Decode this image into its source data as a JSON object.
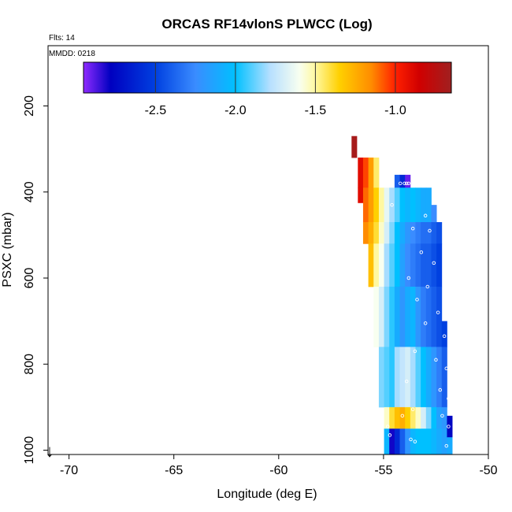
{
  "chart_data": {
    "type": "heatmap",
    "title": "ORCAS RF14vlonS PLWCC (Log)",
    "annotations": {
      "flights": "Flts: 14",
      "date": "MMDD: 0218"
    },
    "xlabel": "Longitude (deg E)",
    "ylabel": "PSXC (mbar)",
    "xlim": [
      -71,
      -50
    ],
    "ylim": [
      1010,
      60
    ],
    "x_ticks": [
      -70,
      -65,
      -60,
      -55,
      -50
    ],
    "x_tick_labels": [
      "-70",
      "-65",
      "-60",
      "-55",
      "-50"
    ],
    "y_ticks": [
      200,
      400,
      600,
      800,
      1000
    ],
    "y_tick_labels": [
      "200",
      "400",
      "600",
      "800",
      "1000"
    ],
    "colorbar": {
      "range": [
        -2.95,
        -0.65
      ],
      "ticks": [
        -2.5,
        -2.0,
        -1.5,
        -1.0
      ],
      "tick_labels": [
        "-2.5",
        "-2.0",
        "-1.5",
        "-1.0"
      ],
      "stops": [
        {
          "v": -2.95,
          "c": "#8f2bff"
        },
        {
          "v": -2.78,
          "c": "#0000c0"
        },
        {
          "v": -2.5,
          "c": "#0040e0"
        },
        {
          "v": -2.25,
          "c": "#3a8cff"
        },
        {
          "v": -2.0,
          "c": "#00c0ff"
        },
        {
          "v": -1.78,
          "c": "#b8e0ff"
        },
        {
          "v": -1.6,
          "c": "#f8fff0"
        },
        {
          "v": -1.5,
          "c": "#fff8a0"
        },
        {
          "v": -1.35,
          "c": "#ffd000"
        },
        {
          "v": -1.15,
          "c": "#ff8c00"
        },
        {
          "v": -1.0,
          "c": "#ff2000"
        },
        {
          "v": -0.85,
          "c": "#d00000"
        },
        {
          "v": -0.65,
          "c": "#a02020"
        }
      ]
    },
    "indicator": "↓",
    "columns": [
      {
        "lon": -56.4,
        "cells": [
          {
            "p0": 270,
            "p1": 320,
            "v": -0.68
          }
        ]
      },
      {
        "lon": -56.1,
        "cells": [
          {
            "p0": 320,
            "p1": 390,
            "v": -0.9
          },
          {
            "p0": 390,
            "p1": 425,
            "v": -0.9
          }
        ]
      },
      {
        "lon": -55.85,
        "cells": [
          {
            "p0": 320,
            "p1": 390,
            "v": -1.05
          },
          {
            "p0": 390,
            "p1": 470,
            "v": -1.1
          },
          {
            "p0": 470,
            "p1": 520,
            "v": -1.15
          }
        ]
      },
      {
        "lon": -55.6,
        "cells": [
          {
            "p0": 320,
            "p1": 390,
            "v": -1.2
          },
          {
            "p0": 390,
            "p1": 470,
            "v": -1.2
          },
          {
            "p0": 470,
            "p1": 520,
            "v": -1.25
          },
          {
            "p0": 520,
            "p1": 620,
            "v": -1.3
          }
        ]
      },
      {
        "lon": -55.35,
        "cells": [
          {
            "p0": 320,
            "p1": 390,
            "v": -1.45
          },
          {
            "p0": 390,
            "p1": 470,
            "v": -1.35
          },
          {
            "p0": 470,
            "p1": 520,
            "v": -1.4
          },
          {
            "p0": 520,
            "p1": 620,
            "v": -1.5
          },
          {
            "p0": 620,
            "p1": 760,
            "v": -1.6
          }
        ]
      },
      {
        "lon": -55.1,
        "cells": [
          {
            "p0": 390,
            "p1": 470,
            "v": -1.5
          },
          {
            "p0": 470,
            "p1": 520,
            "v": -1.55
          },
          {
            "p0": 520,
            "p1": 620,
            "v": -1.6
          },
          {
            "p0": 620,
            "p1": 760,
            "v": -1.7
          },
          {
            "p0": 760,
            "p1": 900,
            "v": -1.85
          }
        ]
      },
      {
        "lon": -54.85,
        "cells": [
          {
            "p0": 390,
            "p1": 470,
            "v": -1.65
          },
          {
            "p0": 470,
            "p1": 520,
            "v": -1.7
          },
          {
            "p0": 520,
            "p1": 620,
            "v": -1.8
          },
          {
            "p0": 620,
            "p1": 760,
            "v": -1.85
          },
          {
            "p0": 760,
            "p1": 900,
            "v": -1.9
          },
          {
            "p0": 900,
            "p1": 950,
            "v": -1.55
          },
          {
            "p0": 950,
            "p1": 1010,
            "v": -2.05
          }
        ]
      },
      {
        "lon": -54.6,
        "cells": [
          {
            "p0": 390,
            "p1": 470,
            "v": -1.8
          },
          {
            "p0": 470,
            "p1": 520,
            "v": -1.85
          },
          {
            "p0": 520,
            "p1": 620,
            "v": -1.9
          },
          {
            "p0": 620,
            "p1": 760,
            "v": -1.95
          },
          {
            "p0": 760,
            "p1": 900,
            "v": -1.95
          },
          {
            "p0": 900,
            "p1": 950,
            "v": -1.4
          },
          {
            "p0": 950,
            "p1": 1010,
            "v": -2.8
          }
        ]
      },
      {
        "lon": -54.35,
        "cells": [
          {
            "p0": 360,
            "p1": 390,
            "v": -2.4
          },
          {
            "p0": 390,
            "p1": 470,
            "v": -1.9
          },
          {
            "p0": 470,
            "p1": 520,
            "v": -2.0
          },
          {
            "p0": 520,
            "p1": 620,
            "v": -2.0
          },
          {
            "p0": 620,
            "p1": 760,
            "v": -2.1
          },
          {
            "p0": 760,
            "p1": 900,
            "v": -1.8
          },
          {
            "p0": 900,
            "p1": 950,
            "v": -1.3
          },
          {
            "p0": 950,
            "p1": 1010,
            "v": -2.6
          }
        ]
      },
      {
        "lon": -54.1,
        "cells": [
          {
            "p0": 360,
            "p1": 390,
            "v": -2.6
          },
          {
            "p0": 390,
            "p1": 470,
            "v": -2.0
          },
          {
            "p0": 470,
            "p1": 520,
            "v": -2.1
          },
          {
            "p0": 520,
            "p1": 620,
            "v": -2.15
          },
          {
            "p0": 620,
            "p1": 760,
            "v": -2.2
          },
          {
            "p0": 760,
            "p1": 900,
            "v": -1.75
          },
          {
            "p0": 900,
            "p1": 950,
            "v": -1.25
          },
          {
            "p0": 950,
            "p1": 1010,
            "v": -2.4
          }
        ]
      },
      {
        "lon": -53.85,
        "cells": [
          {
            "p0": 360,
            "p1": 390,
            "v": -2.9
          },
          {
            "p0": 390,
            "p1": 470,
            "v": -2.05
          },
          {
            "p0": 470,
            "p1": 520,
            "v": -2.2
          },
          {
            "p0": 520,
            "p1": 620,
            "v": -2.25
          },
          {
            "p0": 620,
            "p1": 760,
            "v": -2.1
          },
          {
            "p0": 760,
            "p1": 900,
            "v": -1.7
          },
          {
            "p0": 900,
            "p1": 950,
            "v": -1.35
          },
          {
            "p0": 950,
            "p1": 1010,
            "v": -2.2
          }
        ]
      },
      {
        "lon": -53.6,
        "cells": [
          {
            "p0": 390,
            "p1": 470,
            "v": -2.0
          },
          {
            "p0": 470,
            "p1": 520,
            "v": -2.25
          },
          {
            "p0": 520,
            "p1": 620,
            "v": -2.3
          },
          {
            "p0": 620,
            "p1": 760,
            "v": -2.05
          },
          {
            "p0": 760,
            "p1": 900,
            "v": -1.8
          },
          {
            "p0": 900,
            "p1": 950,
            "v": -1.45
          },
          {
            "p0": 950,
            "p1": 1010,
            "v": -2.05
          }
        ]
      },
      {
        "lon": -53.35,
        "cells": [
          {
            "p0": 390,
            "p1": 470,
            "v": -2.05
          },
          {
            "p0": 470,
            "p1": 520,
            "v": -2.3
          },
          {
            "p0": 520,
            "p1": 620,
            "v": -2.35
          },
          {
            "p0": 620,
            "p1": 760,
            "v": -2.2
          },
          {
            "p0": 760,
            "p1": 900,
            "v": -1.9
          },
          {
            "p0": 900,
            "p1": 950,
            "v": -1.55
          },
          {
            "p0": 950,
            "p1": 1010,
            "v": -2.0
          }
        ]
      },
      {
        "lon": -53.1,
        "cells": [
          {
            "p0": 390,
            "p1": 470,
            "v": -2.1
          },
          {
            "p0": 470,
            "p1": 520,
            "v": -2.35
          },
          {
            "p0": 520,
            "p1": 620,
            "v": -2.4
          },
          {
            "p0": 620,
            "p1": 760,
            "v": -2.3
          },
          {
            "p0": 760,
            "p1": 900,
            "v": -2.0
          },
          {
            "p0": 900,
            "p1": 950,
            "v": -1.7
          },
          {
            "p0": 950,
            "p1": 1010,
            "v": -2.0
          }
        ]
      },
      {
        "lon": -52.85,
        "cells": [
          {
            "p0": 390,
            "p1": 470,
            "v": -2.1
          },
          {
            "p0": 470,
            "p1": 520,
            "v": -2.35
          },
          {
            "p0": 520,
            "p1": 620,
            "v": -2.4
          },
          {
            "p0": 620,
            "p1": 760,
            "v": -2.35
          },
          {
            "p0": 760,
            "p1": 900,
            "v": -2.1
          },
          {
            "p0": 900,
            "p1": 950,
            "v": -1.85
          },
          {
            "p0": 950,
            "p1": 1010,
            "v": -2.0
          }
        ]
      },
      {
        "lon": -52.6,
        "cells": [
          {
            "p0": 430,
            "p1": 470,
            "v": -2.25
          },
          {
            "p0": 470,
            "p1": 520,
            "v": -2.4
          },
          {
            "p0": 520,
            "p1": 620,
            "v": -2.45
          },
          {
            "p0": 620,
            "p1": 760,
            "v": -2.4
          },
          {
            "p0": 760,
            "p1": 900,
            "v": -2.2
          },
          {
            "p0": 900,
            "p1": 950,
            "v": -2.0
          },
          {
            "p0": 950,
            "p1": 1010,
            "v": -2.05
          }
        ]
      },
      {
        "lon": -52.35,
        "cells": [
          {
            "p0": 470,
            "p1": 520,
            "v": -2.45
          },
          {
            "p0": 520,
            "p1": 620,
            "v": -2.5
          },
          {
            "p0": 620,
            "p1": 760,
            "v": -2.45
          },
          {
            "p0": 760,
            "p1": 900,
            "v": -2.3
          },
          {
            "p0": 900,
            "p1": 950,
            "v": -2.15
          },
          {
            "p0": 950,
            "p1": 1010,
            "v": -2.1
          }
        ]
      },
      {
        "lon": -52.1,
        "cells": [
          {
            "p0": 700,
            "p1": 760,
            "v": -2.5
          },
          {
            "p0": 760,
            "p1": 900,
            "v": -2.4
          },
          {
            "p0": 900,
            "p1": 950,
            "v": -2.2
          },
          {
            "p0": 950,
            "p1": 1010,
            "v": -2.15
          }
        ]
      },
      {
        "lon": -51.85,
        "cells": [
          {
            "p0": 920,
            "p1": 970,
            "v": -2.75
          },
          {
            "p0": 970,
            "p1": 1010,
            "v": -2.1
          }
        ]
      }
    ],
    "column_width": 0.25,
    "sample_points": [
      {
        "lon": -54.2,
        "p": 380
      },
      {
        "lon": -54.0,
        "p": 380
      },
      {
        "lon": -53.9,
        "p": 380
      },
      {
        "lon": -53.8,
        "p": 380
      },
      {
        "lon": -54.6,
        "p": 430
      },
      {
        "lon": -53.0,
        "p": 455
      },
      {
        "lon": -53.6,
        "p": 485
      },
      {
        "lon": -52.8,
        "p": 490
      },
      {
        "lon": -53.2,
        "p": 540
      },
      {
        "lon": -52.6,
        "p": 565
      },
      {
        "lon": -53.8,
        "p": 600
      },
      {
        "lon": -52.9,
        "p": 620
      },
      {
        "lon": -53.4,
        "p": 650
      },
      {
        "lon": -52.4,
        "p": 680
      },
      {
        "lon": -53.0,
        "p": 705
      },
      {
        "lon": -52.1,
        "p": 735
      },
      {
        "lon": -53.5,
        "p": 770
      },
      {
        "lon": -52.5,
        "p": 790
      },
      {
        "lon": -52.0,
        "p": 810
      },
      {
        "lon": -53.9,
        "p": 840
      },
      {
        "lon": -52.3,
        "p": 860
      },
      {
        "lon": -51.9,
        "p": 880
      },
      {
        "lon": -53.6,
        "p": 905
      },
      {
        "lon": -54.1,
        "p": 920
      },
      {
        "lon": -52.2,
        "p": 920
      },
      {
        "lon": -54.8,
        "p": 945
      },
      {
        "lon": -51.9,
        "p": 945
      },
      {
        "lon": -54.7,
        "p": 965
      },
      {
        "lon": -53.7,
        "p": 975
      },
      {
        "lon": -53.5,
        "p": 980
      },
      {
        "lon": -52.0,
        "p": 990
      }
    ]
  }
}
